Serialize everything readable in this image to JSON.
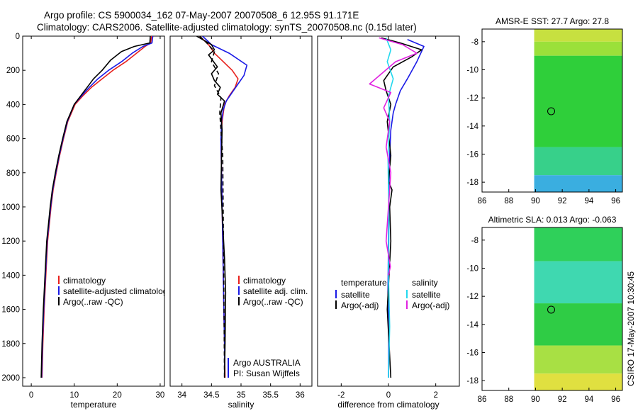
{
  "title": {
    "line1": "Argo profile: CS 5900034_162 07-May-2007 20070508_6 12.95S 91.171E",
    "line2": "Climatology: CARS2006. Satellite-adjusted climatology: synTS_20070508.nc (0.15d later)"
  },
  "side_label": "CSIRO 17-May-2007 10:30:45",
  "colors": {
    "climatology": "#e8201c",
    "satellite": "#1a1ae6",
    "argo": "#000000",
    "sat_sal": "#22d8ee",
    "argo_adj_sal": "#e022e0"
  },
  "chart_data": [
    {
      "id": "temperature",
      "type": "line",
      "xlabel": "temperature",
      "ylabel": "",
      "xlim": [
        -2,
        31
      ],
      "ylim": [
        2050,
        0
      ],
      "xticks": [
        "0",
        "10",
        "20",
        "30"
      ],
      "xtick_values": [
        0,
        10,
        20,
        30
      ],
      "yticks": [
        "0",
        "200",
        "400",
        "600",
        "800",
        "1000",
        "1200",
        "1400",
        "1600",
        "1800",
        "2000"
      ],
      "ytick_values": [
        0,
        200,
        400,
        600,
        800,
        1000,
        1200,
        1400,
        1600,
        1800,
        2000
      ],
      "legend": [
        "climatology",
        "satellite-adjusted climatology",
        "Argo(..raw -QC)"
      ],
      "series": [
        {
          "name": "climatology",
          "color": "climatology",
          "dash": "",
          "x": [
            28,
            27.8,
            26.5,
            24.5,
            22,
            19,
            16.5,
            14,
            12,
            10.2,
            8.5,
            7.5,
            6.6,
            5.8,
            5.1,
            4.6,
            4.2,
            3.8,
            3.4,
            3.0,
            2.7,
            2.5
          ],
          "y": [
            0,
            40,
            60,
            100,
            150,
            200,
            250,
            300,
            350,
            400,
            500,
            600,
            700,
            800,
            900,
            1000,
            1100,
            1200,
            1400,
            1600,
            1800,
            2000
          ]
        },
        {
          "name": "satellite-adjusted climatology",
          "color": "satellite",
          "dash": "",
          "x": [
            28.3,
            28.1,
            26,
            23.5,
            21,
            18,
            15.5,
            13.5,
            11.7,
            10,
            8.4,
            7.4,
            6.5,
            5.7,
            5.0,
            4.5,
            4.1,
            3.7,
            3.3,
            2.9,
            2.6,
            2.4
          ],
          "y": [
            0,
            40,
            60,
            100,
            150,
            200,
            250,
            300,
            350,
            400,
            500,
            600,
            700,
            800,
            900,
            1000,
            1100,
            1200,
            1400,
            1600,
            1800,
            2000
          ]
        },
        {
          "name": "Argo(..raw -QC)",
          "color": "argo",
          "dash": "",
          "x": [
            27.7,
            27.6,
            24,
            21,
            18.5,
            16.5,
            14.5,
            13,
            11.5,
            10,
            8.3,
            7.3,
            6.4,
            5.6,
            4.9,
            4.4,
            4.0,
            3.6,
            3.2,
            2.8,
            2.5,
            2.3
          ],
          "y": [
            0,
            40,
            60,
            90,
            140,
            200,
            250,
            300,
            350,
            400,
            500,
            600,
            700,
            800,
            900,
            1000,
            1100,
            1200,
            1400,
            1600,
            1800,
            2000
          ]
        }
      ]
    },
    {
      "id": "salinity",
      "type": "line",
      "xlabel": "salinity",
      "ylabel": "",
      "xlim": [
        33.8,
        36.2
      ],
      "ylim": [
        2050,
        0
      ],
      "xticks": [
        "34",
        "34.5",
        "35",
        "35.5",
        "36"
      ],
      "xtick_values": [
        34,
        34.5,
        35,
        35.5,
        36
      ],
      "yticks": [],
      "legend": [
        "climatology",
        "satellite adj. clim.",
        "Argo(..raw -QC)"
      ],
      "annotation": [
        "Argo AUSTRALIA",
        "PI: Susan Wijffels"
      ],
      "series": [
        {
          "name": "climatology",
          "color": "climatology",
          "dash": "",
          "x": [
            34.3,
            34.45,
            34.55,
            34.7,
            34.85,
            34.95,
            34.9,
            34.8,
            34.72,
            34.68,
            34.66,
            34.67,
            34.68,
            34.69,
            34.7,
            34.71,
            34.72,
            34.73
          ],
          "y": [
            0,
            50,
            100,
            150,
            200,
            250,
            300,
            350,
            400,
            500,
            600,
            800,
            1000,
            1200,
            1400,
            1600,
            1800,
            2000
          ]
        },
        {
          "name": "satellite adj. clim.",
          "color": "satellite",
          "dash": "",
          "x": [
            34.35,
            34.5,
            34.8,
            35.1,
            35.05,
            34.95,
            34.85,
            34.75,
            34.7,
            34.67,
            34.66,
            34.67,
            34.68,
            34.69,
            34.7,
            34.71,
            34.72,
            34.72
          ],
          "y": [
            0,
            50,
            100,
            170,
            230,
            280,
            330,
            380,
            430,
            500,
            600,
            800,
            1000,
            1200,
            1400,
            1600,
            1800,
            2000
          ]
        },
        {
          "name": "Argo(..raw -QC)",
          "color": "argo",
          "dash": "",
          "x": [
            34.25,
            34.4,
            34.5,
            34.55,
            34.45,
            34.6,
            34.5,
            34.55,
            34.65,
            34.6,
            34.72,
            34.66,
            34.68,
            34.67,
            34.66,
            34.69,
            34.72,
            34.74,
            34.73,
            34.72
          ],
          "y": [
            0,
            30,
            50,
            80,
            110,
            180,
            220,
            260,
            300,
            340,
            380,
            450,
            550,
            700,
            900,
            1100,
            1300,
            1500,
            1800,
            2000
          ]
        },
        {
          "name": "Argo(..raw -QC) adjusted",
          "color": "argo",
          "dash": "6,4",
          "x": [
            34.3,
            34.42,
            34.55,
            34.5,
            34.62,
            34.55,
            34.66,
            34.64,
            34.69,
            34.7,
            34.71,
            34.72
          ],
          "y": [
            0,
            40,
            90,
            150,
            220,
            290,
            360,
            450,
            700,
            1100,
            1500,
            2000
          ]
        }
      ]
    },
    {
      "id": "difference",
      "type": "line",
      "xlabel": "difference from climatology",
      "ylabel": "",
      "xlim": [
        -3,
        3
      ],
      "ylim": [
        2050,
        0
      ],
      "xticks": [
        "-2",
        "0",
        "2"
      ],
      "xtick_values": [
        -2,
        0,
        2
      ],
      "yticks": [],
      "legend_groups": [
        {
          "header": "temperature",
          "items": [
            "satellite",
            "Argo(-adj)"
          ]
        },
        {
          "header": "salinity",
          "items": [
            "satellite",
            "Argo(-adj)"
          ]
        }
      ],
      "series": [
        {
          "name": "temperature satellite",
          "color": "satellite",
          "dash": "",
          "x": [
            0.8,
            1.5,
            1.2,
            0.8,
            0.5,
            0.3,
            0.2,
            0.1,
            0.05,
            0.02,
            0.0,
            -0.02,
            0.01,
            0.0
          ],
          "y": [
            20,
            60,
            150,
            250,
            320,
            400,
            450,
            550,
            700,
            900,
            1200,
            1500,
            1800,
            2000
          ]
        },
        {
          "name": "temperature Argo(-adj)",
          "color": "argo",
          "dash": "",
          "x": [
            -0.3,
            0.5,
            1.4,
            1.0,
            0.2,
            -0.2,
            -0.1,
            0.1,
            -0.05,
            0.1,
            0.0,
            0.15,
            0.05,
            0.1,
            -0.05,
            0.1
          ],
          "y": [
            10,
            40,
            80,
            120,
            180,
            260,
            320,
            400,
            500,
            700,
            850,
            900,
            1000,
            1200,
            1600,
            2000
          ]
        },
        {
          "name": "salinity satellite",
          "color": "sat_sal",
          "dash": "",
          "x": [
            -0.1,
            0.1,
            -0.05,
            0.2,
            0.0,
            0.05,
            -0.02,
            0.0,
            0.02,
            0.0,
            0.05,
            0.0
          ],
          "y": [
            10,
            80,
            150,
            250,
            350,
            500,
            700,
            900,
            1100,
            1400,
            1700,
            2000
          ]
        },
        {
          "name": "salinity Argo(-adj)",
          "color": "argo_adj_sal",
          "dash": "",
          "x": [
            -0.4,
            0.6,
            1.2,
            0.3,
            -0.8,
            0.1,
            -0.2,
            0.05,
            -0.1,
            0.1,
            0.0,
            -0.1,
            0.08,
            0.0
          ],
          "y": [
            10,
            50,
            100,
            150,
            280,
            330,
            420,
            500,
            650,
            800,
            1000,
            1200,
            1350,
            1400
          ]
        }
      ]
    },
    {
      "id": "amsr_sst_map",
      "type": "heatmap",
      "title": "AMSR-E SST: 27.7 Argo: 27.8",
      "xlim": [
        86,
        96.5
      ],
      "ylim": [
        -18.7,
        -7.1
      ],
      "xticks": [
        "86",
        "88",
        "90",
        "92",
        "94",
        "96"
      ],
      "xtick_values": [
        86,
        88,
        90,
        92,
        94,
        96
      ],
      "yticks": [
        "-8",
        "-10",
        "-12",
        "-14",
        "-16",
        "-18"
      ],
      "ytick_values": [
        -8,
        -10,
        -12,
        -14,
        -16,
        -18
      ],
      "data_x_start": 89.9,
      "float_position": {
        "lon": 91.171,
        "lat": -12.95
      },
      "color_bands": [
        {
          "lat_top": -7.1,
          "lat_bottom": -8.0,
          "color": "#c7e040"
        },
        {
          "lat_top": -8.0,
          "lat_bottom": -9.0,
          "color": "#9be03a"
        },
        {
          "lat_top": -9.0,
          "lat_bottom": -15.5,
          "color": "#2fcf3a"
        },
        {
          "lat_top": -15.5,
          "lat_bottom": -17.5,
          "color": "#37d08a"
        },
        {
          "lat_top": -17.5,
          "lat_bottom": -18.7,
          "color": "#3aaee0"
        }
      ]
    },
    {
      "id": "altimetric_sla_map",
      "type": "heatmap",
      "title": "Altimetric SLA: 0.013 Argo: -0.063",
      "xlim": [
        86,
        96.5
      ],
      "ylim": [
        -18.7,
        -7.1
      ],
      "xticks": [
        "86",
        "88",
        "90",
        "92",
        "94",
        "96"
      ],
      "xtick_values": [
        86,
        88,
        90,
        92,
        94,
        96
      ],
      "yticks": [
        "-8",
        "-10",
        "-12",
        "-14",
        "-16",
        "-18"
      ],
      "ytick_values": [
        -8,
        -10,
        -12,
        -14,
        -16,
        -18
      ],
      "data_x_start": 89.9,
      "float_position": {
        "lon": 91.171,
        "lat": -12.95
      },
      "color_bands": [
        {
          "lat_top": -7.1,
          "lat_bottom": -9.5,
          "color": "#2fd05a"
        },
        {
          "lat_top": -9.5,
          "lat_bottom": -12.5,
          "color": "#3fd8b0"
        },
        {
          "lat_top": -12.5,
          "lat_bottom": -15.5,
          "color": "#2fcc45"
        },
        {
          "lat_top": -15.5,
          "lat_bottom": -17.5,
          "color": "#a8e044"
        },
        {
          "lat_top": -17.5,
          "lat_bottom": -18.7,
          "color": "#e0e040"
        }
      ]
    }
  ]
}
